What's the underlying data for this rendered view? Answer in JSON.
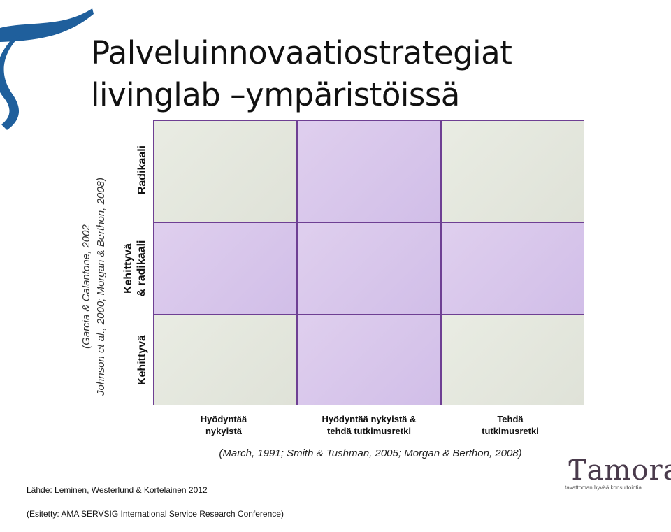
{
  "title": {
    "line1": "Palveluinnovaatiostrategiat",
    "line2": "livinglab –ympäristöissä"
  },
  "matrix": {
    "row_labels": [
      "Radikaali",
      "Kehittyvä\n& radikaali",
      "Kehittyvä"
    ],
    "col_labels": [
      "Hyödyntää\nnykyistä",
      "Hyödyntää nykyistä &\ntehdä tutkimusretki",
      "Tehdä\ntutkimusretki"
    ],
    "cell_colors": [
      [
        "gray",
        "purple",
        "gray"
      ],
      [
        "purple",
        "purple",
        "purple"
      ],
      [
        "gray",
        "purple",
        "gray"
      ]
    ]
  },
  "side_citation": "(Garcia & Calantone, 2002\nJohnson et al., 2000; Morgan & Berthon, 2008)",
  "bottom_citation": "(March, 1991; Smith & Tushman, 2005; Morgan & Berthon, 2008)",
  "source": {
    "line1": "Lähde: Leminen, Westerlund & Kortelainen 2012",
    "line2": "(Esitetty: AMA SERVSIG International Service Research Conference)"
  },
  "logo": {
    "name": "Ƭamora",
    "tagline": "tavattoman hyvää konsultointia"
  },
  "colors": {
    "accent_blue": "#1f5f9c",
    "grid_border": "#6e3f93",
    "cell_gray": "#e3e6dc",
    "cell_purple": "#d7c5eb"
  }
}
